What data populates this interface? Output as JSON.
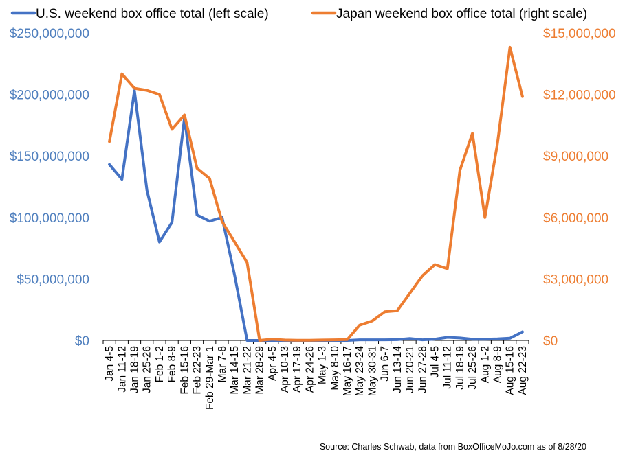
{
  "chart_data": {
    "type": "line",
    "legend_position": "top",
    "grid": false,
    "categories": [
      "Jan 4-5",
      "Jan 11-12",
      "Jan 18-19",
      "Jan 25-26",
      "Feb 1-2",
      "Feb 8-9",
      "Feb 15-16",
      "Feb 22-23",
      "Feb 29-Mar 1",
      "Mar 7-8",
      "Mar 14-15",
      "Mar 21-22",
      "Mar 28-29",
      "Apr 4-5",
      "Apr 10-13",
      "Apr 17-19",
      "Apr 24-26",
      "May 1-3",
      "May 8-10",
      "May 16-17",
      "May 23-24",
      "May 30-31",
      "Jun 6-7",
      "Jun 13-14",
      "Jun 20-21",
      "Jun 27-28",
      "Jul 4-5",
      "Jul 11-12",
      "Jul 18-19",
      "Jul 25-26",
      "Aug 1-2",
      "Aug 8-9",
      "Aug 15-16",
      "Aug 22-23"
    ],
    "series": [
      {
        "name": "U.S. weekend box office total (left scale)",
        "axis": "left",
        "color": "#4472C4",
        "values": [
          143000000,
          131000000,
          203000000,
          122000000,
          80000000,
          96000000,
          181000000,
          102000000,
          97000000,
          100000000,
          53000000,
          0,
          0,
          0,
          0,
          0,
          0,
          0,
          0,
          0,
          500000,
          500000,
          500000,
          600000,
          1500000,
          500000,
          1000000,
          2500000,
          2000000,
          1000000,
          1000000,
          1200000,
          1800000,
          7000000
        ]
      },
      {
        "name": "Japan weekend box office total (right scale)",
        "axis": "right",
        "color": "#ED7D31",
        "values": [
          9700000,
          13000000,
          12300000,
          12200000,
          12000000,
          10300000,
          11000000,
          8400000,
          7900000,
          5800000,
          4800000,
          3800000,
          0,
          60000,
          20000,
          10000,
          10000,
          20000,
          30000,
          40000,
          750000,
          950000,
          1400000,
          1450000,
          2300000,
          3150000,
          3700000,
          3500000,
          8300000,
          10100000,
          6000000,
          9600000,
          14300000,
          11900000
        ]
      }
    ],
    "left_axis": {
      "ylim": [
        0,
        250000000
      ],
      "ticks": [
        "$0",
        "$50,000,000",
        "$100,000,000",
        "$150,000,000",
        "$200,000,000",
        "$250,000,000"
      ],
      "color": "#4F7FBE"
    },
    "right_axis": {
      "ylim": [
        0,
        15000000
      ],
      "ticks": [
        "$0",
        "$3,000,000",
        "$6,000,000",
        "$9,000,000",
        "$12,000,000",
        "$15,000,000"
      ],
      "color": "#ED7D31"
    },
    "source": "Source: Charles Schwab, data from BoxOfficeMoJo.com as of 8/28/20"
  }
}
